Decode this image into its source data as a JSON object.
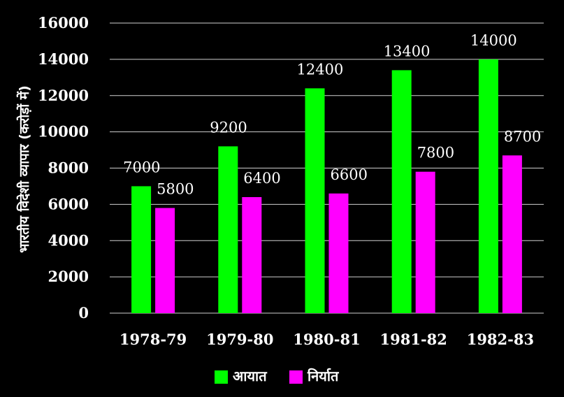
{
  "chart_data": {
    "type": "bar",
    "ylabel": "भारतीय विदेशी व्यापार (करोड़ों में)",
    "categories": [
      "1978-79",
      "1979-80",
      "1980-81",
      "1981-82",
      "1982-83"
    ],
    "series": [
      {
        "name": "आयात",
        "values": [
          7000,
          9200,
          12400,
          13400,
          14000
        ],
        "color": "#00ff00"
      },
      {
        "name": "निर्यात",
        "values": [
          5800,
          6400,
          6600,
          7800,
          8700
        ],
        "color": "#ff00ff"
      }
    ],
    "ylim": [
      0,
      16000
    ],
    "yticks": [
      "0",
      "2000",
      "4000",
      "6000",
      "8000",
      "10000",
      "12000",
      "14000",
      "16000"
    ],
    "grid": true,
    "legend": "bottom-center",
    "background": "#000000"
  }
}
